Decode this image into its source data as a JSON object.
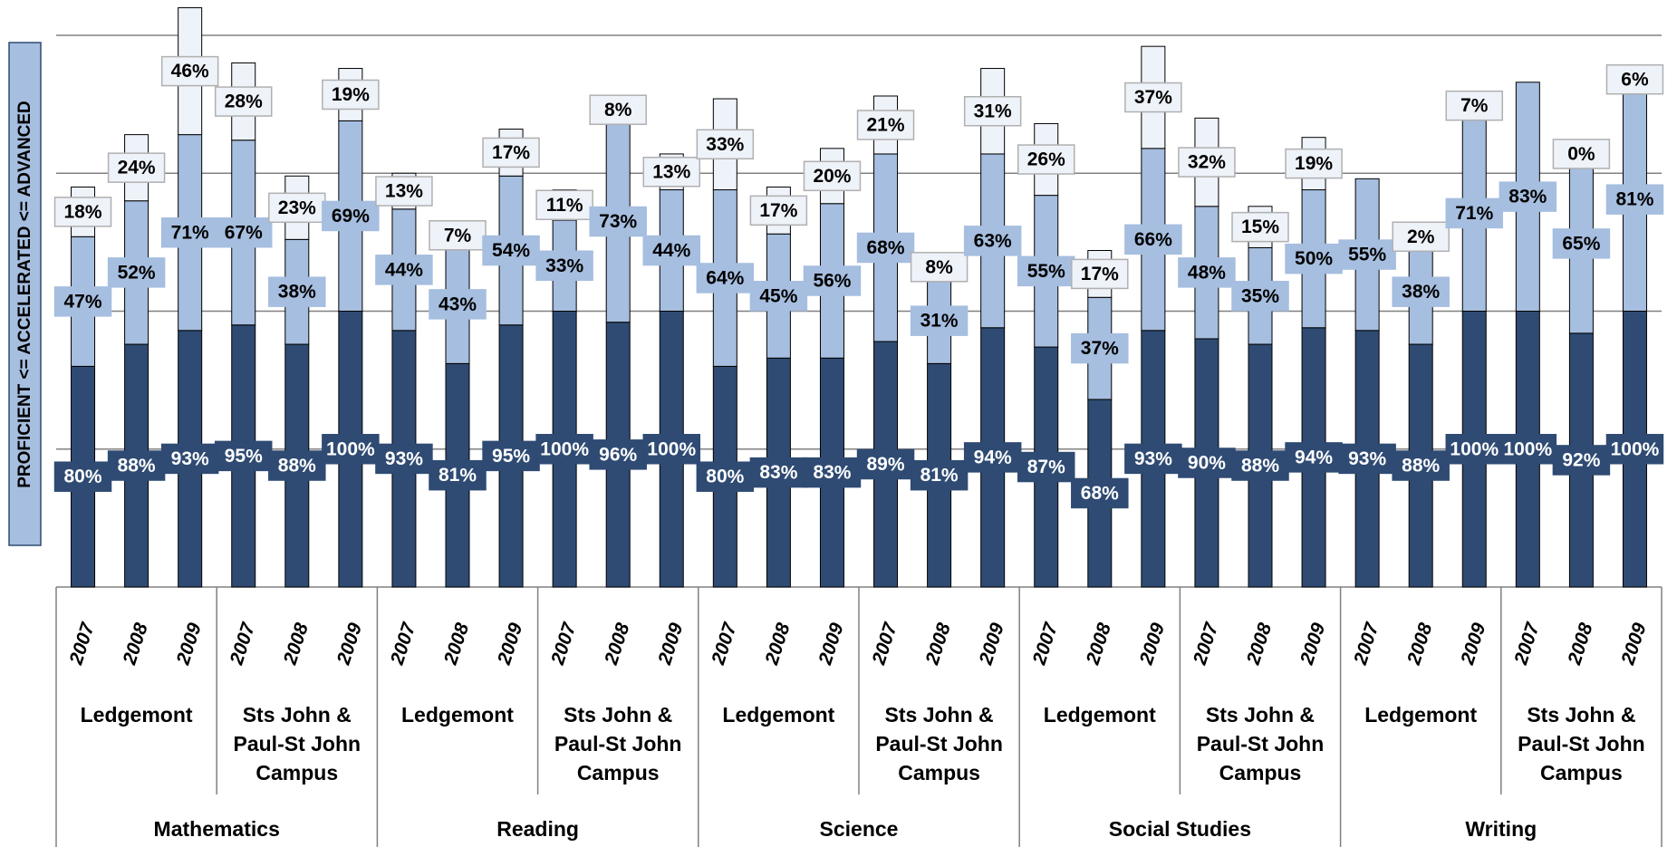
{
  "chart_data": {
    "type": "stacked_bar",
    "y_label": "PROFICIENT <= ACCELERATED <= ADVANCED",
    "categories": [
      "2007",
      "2008",
      "2009",
      "2007",
      "2008",
      "2009",
      "2007",
      "2008",
      "2009",
      "2007",
      "2008",
      "2009",
      "2007",
      "2008",
      "2009",
      "2007",
      "2008",
      "2009",
      "2007",
      "2008",
      "2009",
      "2007",
      "2008",
      "2009",
      "2007",
      "2008",
      "2009",
      "2007",
      "2008",
      "2009"
    ],
    "schools": [
      "Ledgemont",
      "Sts John & Paul-St John Campus",
      "Ledgemont",
      "Sts John & Paul-St John Campus",
      "Ledgemont",
      "Sts John & Paul-St John Campus",
      "Ledgemont",
      "Sts John & Paul-St John Campus",
      "Ledgemont",
      "Sts John & Paul-St John Campus"
    ],
    "subjects": [
      "Mathematics",
      "Reading",
      "Science",
      "Social Studies",
      "Writing"
    ],
    "series": [
      {
        "color": "#2f4b73",
        "values": [
          80,
          88,
          93,
          95,
          88,
          100,
          93,
          81,
          95,
          100,
          96,
          100,
          80,
          83,
          83,
          89,
          81,
          94,
          87,
          68,
          93,
          90,
          88,
          94,
          93,
          88,
          100,
          100,
          92,
          100
        ]
      },
      {
        "color": "#a6bedf",
        "values": [
          47,
          52,
          71,
          67,
          38,
          69,
          44,
          43,
          54,
          33,
          73,
          44,
          64,
          45,
          56,
          68,
          31,
          63,
          55,
          37,
          66,
          48,
          35,
          50,
          55,
          38,
          71,
          83,
          65,
          81
        ]
      },
      {
        "color": "#eef2f9",
        "values": [
          18,
          24,
          46,
          28,
          23,
          19,
          13,
          7,
          17,
          11,
          8,
          13,
          33,
          17,
          20,
          21,
          8,
          31,
          26,
          17,
          37,
          32,
          15,
          19,
          null,
          2,
          7,
          null,
          0,
          6
        ]
      }
    ],
    "ylim": [
      0,
      200
    ],
    "yticks": [
      0,
      50,
      100,
      150,
      200
    ],
    "grid": true
  }
}
